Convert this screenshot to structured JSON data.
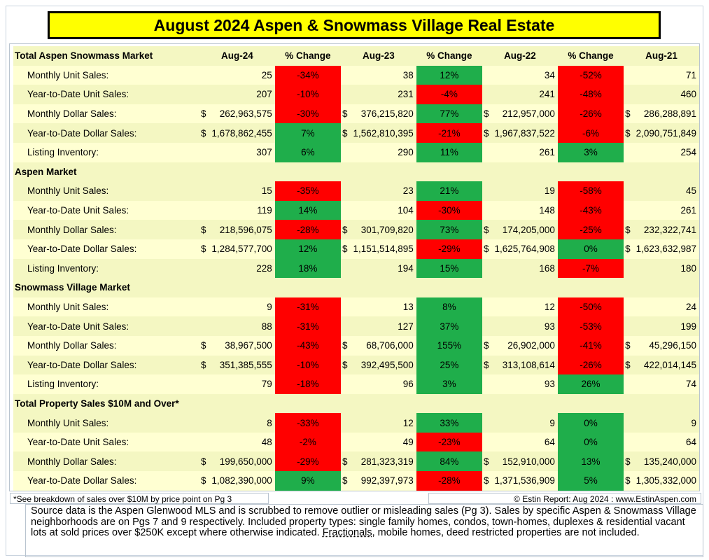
{
  "title": "August 2024 Aspen & Snowmass Village Real Estate",
  "header": {
    "label": "Total Aspen Snowmass Market",
    "columns": [
      "Aug-24",
      "% Change",
      "Aug-23",
      "% Change",
      "Aug-22",
      "% Change",
      "Aug-21"
    ]
  },
  "sections": [
    {
      "title": "Total Aspen Snowmass Market",
      "rows": [
        {
          "label": "Monthly Unit Sales:",
          "v24": "25",
          "p1": "-34%",
          "v23": "38",
          "p2": "12%",
          "v22": "34",
          "p3": "-52%",
          "v21": "71",
          "c": [
            "red",
            "green",
            "red"
          ],
          "money": false
        },
        {
          "label": "Year-to-Date Unit Sales:",
          "v24": "207",
          "p1": "-10%",
          "v23": "231",
          "p2": "-4%",
          "v22": "241",
          "p3": "-48%",
          "v21": "460",
          "c": [
            "red",
            "red",
            "red"
          ],
          "money": false
        },
        {
          "label": "Monthly Dollar Sales:",
          "v24": "262,963,575",
          "p1": "-30%",
          "v23": "376,215,820",
          "p2": "77%",
          "v22": "212,957,000",
          "p3": "-26%",
          "v21": "286,288,891",
          "c": [
            "red",
            "green",
            "red"
          ],
          "money": true
        },
        {
          "label": "Year-to-Date Dollar Sales:",
          "v24": "1,678,862,455",
          "p1": "7%",
          "v23": "1,562,810,395",
          "p2": "-21%",
          "v22": "1,967,837,522",
          "p3": "-6%",
          "v21": "2,090,751,849",
          "c": [
            "green",
            "red",
            "red"
          ],
          "money": true
        },
        {
          "label": "Listing Inventory:",
          "v24": "307",
          "p1": "6%",
          "v23": "290",
          "p2": "11%",
          "v22": "261",
          "p3": "3%",
          "v21": "254",
          "c": [
            "green",
            "green",
            "green"
          ],
          "money": false
        }
      ]
    },
    {
      "title": "Aspen Market",
      "rows": [
        {
          "label": "Monthly Unit Sales:",
          "v24": "15",
          "p1": "-35%",
          "v23": "23",
          "p2": "21%",
          "v22": "19",
          "p3": "-58%",
          "v21": "45",
          "c": [
            "red",
            "green",
            "red"
          ],
          "money": false
        },
        {
          "label": "Year-to-Date Unit Sales:",
          "v24": "119",
          "p1": "14%",
          "v23": "104",
          "p2": "-30%",
          "v22": "148",
          "p3": "-43%",
          "v21": "261",
          "c": [
            "green",
            "red",
            "red"
          ],
          "money": false
        },
        {
          "label": "Monthly Dollar Sales:",
          "v24": "218,596,075",
          "p1": "-28%",
          "v23": "301,709,820",
          "p2": "73%",
          "v22": "174,205,000",
          "p3": "-25%",
          "v21": "232,322,741",
          "c": [
            "red",
            "green",
            "red"
          ],
          "money": true
        },
        {
          "label": "Year-to-Date Dollar Sales:",
          "v24": "1,284,577,700",
          "p1": "12%",
          "v23": "1,151,514,895",
          "p2": "-29%",
          "v22": "1,625,764,908",
          "p3": "0%",
          "v21": "1,623,632,987",
          "c": [
            "green",
            "red",
            "green"
          ],
          "money": true
        },
        {
          "label": "Listing Inventory:",
          "v24": "228",
          "p1": "18%",
          "v23": "194",
          "p2": "15%",
          "v22": "168",
          "p3": "-7%",
          "v21": "180",
          "c": [
            "green",
            "green",
            "red"
          ],
          "money": false
        }
      ]
    },
    {
      "title": "Snowmass Village Market",
      "rows": [
        {
          "label": "Monthly Unit Sales:",
          "v24": "9",
          "p1": "-31%",
          "v23": "13",
          "p2": "8%",
          "v22": "12",
          "p3": "-50%",
          "v21": "24",
          "c": [
            "red",
            "green",
            "red"
          ],
          "money": false
        },
        {
          "label": "Year-to-Date Unit Sales:",
          "v24": "88",
          "p1": "-31%",
          "v23": "127",
          "p2": "37%",
          "v22": "93",
          "p3": "-53%",
          "v21": "199",
          "c": [
            "red",
            "green",
            "red"
          ],
          "money": false
        },
        {
          "label": "Monthly Dollar Sales:",
          "v24": "38,967,500",
          "p1": "-43%",
          "v23": "68,706,000",
          "p2": "155%",
          "v22": "26,902,000",
          "p3": "-41%",
          "v21": "45,296,150",
          "c": [
            "red",
            "green",
            "red"
          ],
          "money": true
        },
        {
          "label": "Year-to-Date Dollar Sales:",
          "v24": "351,385,555",
          "p1": "-10%",
          "v23": "392,495,500",
          "p2": "25%",
          "v22": "313,108,614",
          "p3": "-26%",
          "v21": "422,014,145",
          "c": [
            "red",
            "green",
            "red"
          ],
          "money": true
        },
        {
          "label": "Listing Inventory:",
          "v24": "79",
          "p1": "-18%",
          "v23": "96",
          "p2": "3%",
          "v22": "93",
          "p3": "26%",
          "v21": "74",
          "c": [
            "red",
            "green",
            "green"
          ],
          "money": false
        }
      ]
    },
    {
      "title": "Total Property Sales $10M and Over*",
      "rows": [
        {
          "label": "Monthly Unit Sales:",
          "v24": "8",
          "p1": "-33%",
          "v23": "12",
          "p2": "33%",
          "v22": "9",
          "p3": "0%",
          "v21": "9",
          "c": [
            "red",
            "green",
            "green"
          ],
          "money": false
        },
        {
          "label": "Year-to-Date Unit Sales:",
          "v24": "48",
          "p1": "-2%",
          "v23": "49",
          "p2": "-23%",
          "v22": "64",
          "p3": "0%",
          "v21": "64",
          "c": [
            "red",
            "red",
            "green"
          ],
          "money": false
        },
        {
          "label": "Monthly Dollar Sales:",
          "v24": "199,650,000",
          "p1": "-29%",
          "v23": "281,323,319",
          "p2": "84%",
          "v22": "152,910,000",
          "p3": "13%",
          "v21": "135,240,000",
          "c": [
            "red",
            "green",
            "green"
          ],
          "money": true
        },
        {
          "label": "Year-to-Date Dollar Sales:",
          "v24": "1,082,390,000",
          "p1": "9%",
          "v23": "992,397,973",
          "p2": "-28%",
          "v22": "1,371,536,909",
          "p3": "5%",
          "v21": "1,305,332,000",
          "c": [
            "green",
            "red",
            "green"
          ],
          "money": true
        }
      ]
    }
  ],
  "currency_symbol": "$",
  "colors": {
    "title_bg": "#ffff00",
    "row_light": "#ffffd2",
    "row_dark": "#f4f7c2",
    "negative": "#ff0000",
    "positive": "#1fae4b"
  },
  "footnote_left": "*See breakdown of sales over $10M by price point on Pg 3",
  "footnote_right": "© Estin Report: Aug 2024 : www.EstinAspen.com",
  "source_text_1": "Source data is the Aspen Glenwood MLS and is scrubbed to remove outlier or misleading sales (Pg 3). Sales by specific Aspen & Snowmass Village neighborhoods are on Pgs 7 and 9 respectively. Included property types: single family homes, condos, town-homes, duplexes & residential vacant lots at sold prices over $250K except where otherwise indicated. ",
  "source_text_ul": "Fractionals",
  "source_text_2": ", mobile homes, deed restricted properties are not included."
}
